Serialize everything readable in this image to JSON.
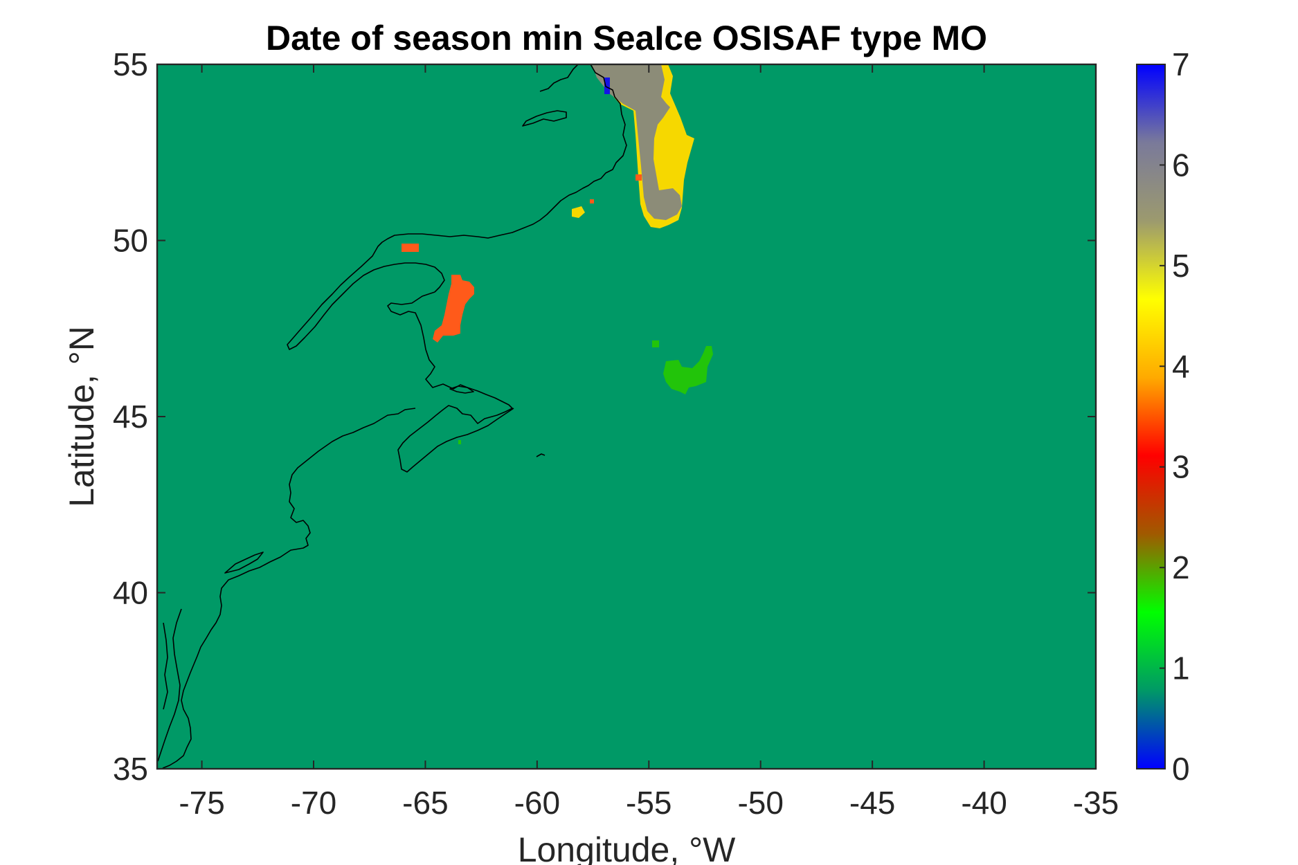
{
  "chart_data": {
    "type": "heatmap",
    "title": "Date of season min SeaIce OSISAF type MO",
    "xlabel": "Longitude, °W",
    "ylabel": "Latitude, °N",
    "xlim": [
      -77,
      -35
    ],
    "ylim": [
      35,
      55
    ],
    "xticks": [
      -75,
      -70,
      -65,
      -60,
      -55,
      -50,
      -45,
      -40,
      -35
    ],
    "yticks": [
      35,
      40,
      45,
      50,
      55
    ],
    "colorbar": {
      "range": [
        0,
        7
      ],
      "ticks": [
        0,
        1,
        2,
        3,
        4,
        5,
        6,
        7
      ],
      "colormap": "parula-like",
      "stops": [
        "#0000ff",
        "#009966",
        "#00ff00",
        "#a05a00",
        "#ff0000",
        "#ffaa00",
        "#ffff00",
        "#9c9a6e",
        "#7a7a9a",
        "#0000ff"
      ]
    },
    "background": {
      "value": 1.0,
      "color": "#009966"
    },
    "regions": [
      {
        "name": "labrador-shelf-grey",
        "value": 6.0,
        "color": "#8c8c78"
      },
      {
        "name": "labrador-shelf-yellow-rim",
        "value": 5.0,
        "color": "#f6d800"
      },
      {
        "name": "labrador-blue-patch",
        "value": 7.0,
        "color": "#1414e6"
      },
      {
        "name": "gulf-st-lawrence-orange",
        "value": 4.0,
        "color": "#ff5a1a"
      },
      {
        "name": "north-shore-orange",
        "value": 4.0,
        "color": "#ff5a1a"
      },
      {
        "name": "grand-banks-green",
        "value": 2.0,
        "color": "#22c40a"
      },
      {
        "name": "newfoundland-small-yellow",
        "value": 5.0,
        "color": "#f6d800"
      },
      {
        "name": "newfoundland-small-orange",
        "value": 4.0,
        "color": "#ff5a1a"
      }
    ],
    "coastline": {
      "color": "#000000"
    },
    "grid": false
  }
}
